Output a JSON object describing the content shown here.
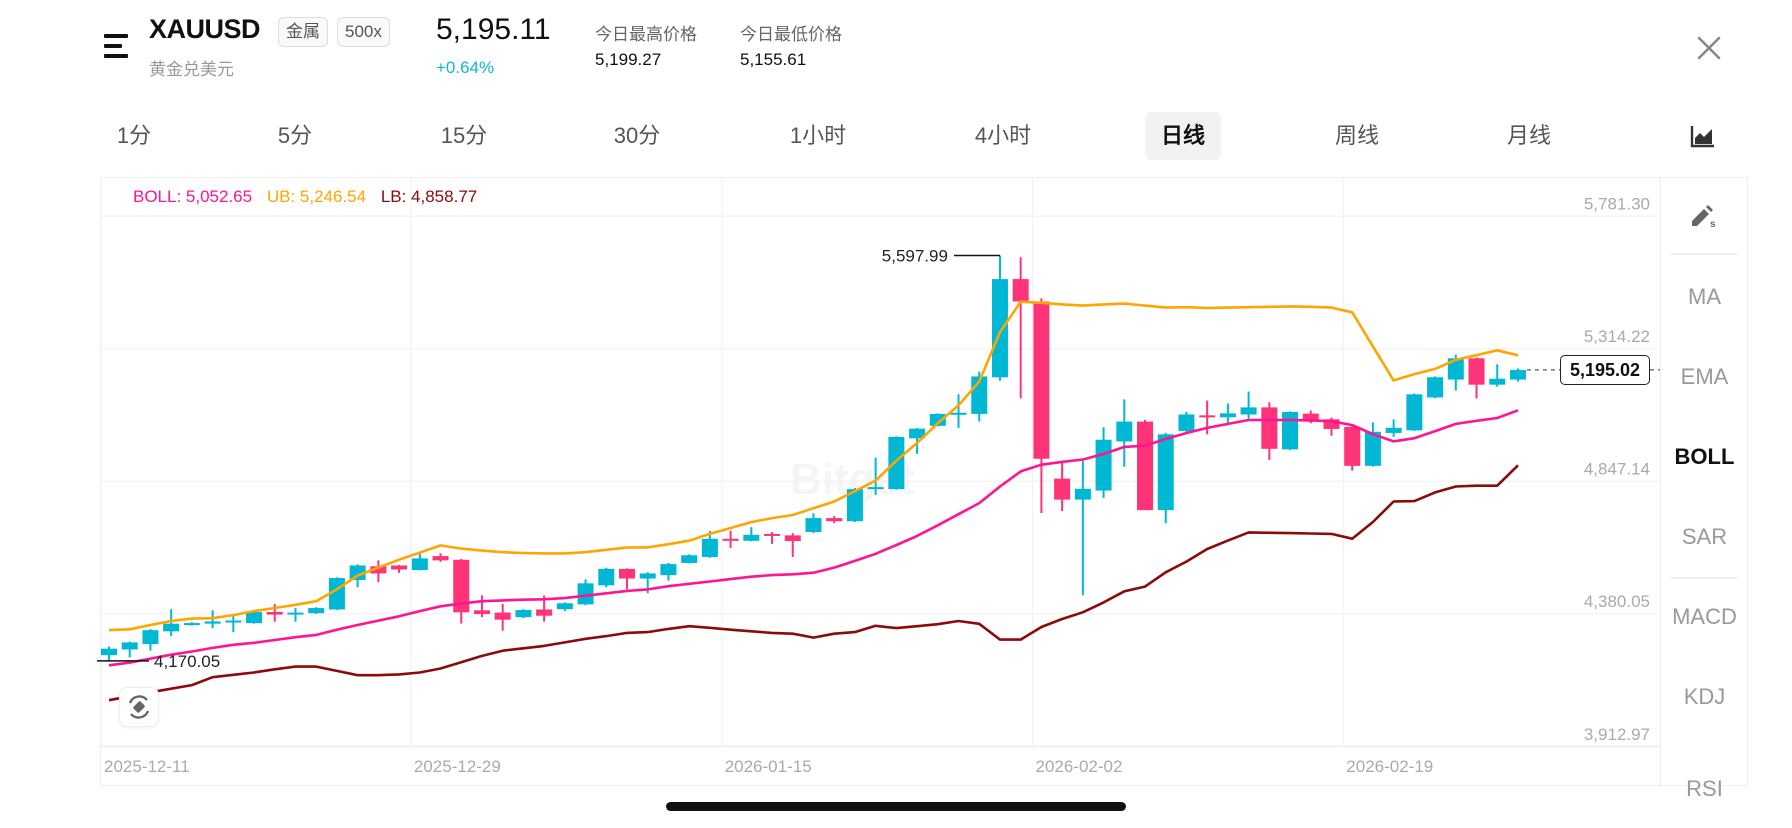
{
  "header": {
    "menu_icon": "menu-icon",
    "symbol": "XAUUSD",
    "tags": [
      "金属",
      "500x"
    ],
    "name": "黄金兑美元",
    "price": "5,195.11",
    "change": "+0.64%",
    "high_label": "今日最高价格",
    "high_value": "5,199.27",
    "low_label": "今日最低价格",
    "low_value": "5,155.61",
    "close_icon": "close-icon"
  },
  "timeframes": [
    {
      "label": "1分",
      "active": false
    },
    {
      "label": "5分",
      "active": false
    },
    {
      "label": "15分",
      "active": false
    },
    {
      "label": "30分",
      "active": false
    },
    {
      "label": "1小时",
      "active": false
    },
    {
      "label": "4小时",
      "active": false
    },
    {
      "label": "日线",
      "active": true
    },
    {
      "label": "周线",
      "active": false
    },
    {
      "label": "月线",
      "active": false
    }
  ],
  "chart_type_icon": "area-chart-icon",
  "sidebar": {
    "draw_tool_icon": "pencil-icon",
    "indicators": [
      {
        "label": "MA",
        "active": false
      },
      {
        "label": "EMA",
        "active": false
      },
      {
        "label": "BOLL",
        "active": true
      },
      {
        "label": "SAR",
        "active": false
      },
      {
        "label": "MACD",
        "active": false
      },
      {
        "label": "KDJ",
        "active": false
      },
      {
        "label": "RSI",
        "active": false
      }
    ]
  },
  "watermark": "Bitget",
  "rotate_icon": "rotate-screen-icon",
  "chart_data": {
    "type": "candlestick",
    "legend": {
      "boll": "BOLL: 5,052.65",
      "ub": "UB: 5,246.54",
      "lb": "LB: 4,858.77"
    },
    "y_range": [
      3912.97,
      5781.3
    ],
    "y_ticks": [
      "5,781.30",
      "5,314.22",
      "4,847.14",
      "4,380.05",
      "3,912.97"
    ],
    "y_tick_values": [
      5781.3,
      5314.22,
      4847.14,
      4380.05,
      3912.97
    ],
    "x_ticks": [
      {
        "label": "2025-12-11",
        "candle": 0
      },
      {
        "label": "2025-12-29",
        "candle": 15
      },
      {
        "label": "2026-01-15",
        "candle": 30
      },
      {
        "label": "2026-02-02",
        "candle": 45
      },
      {
        "label": "2026-02-19",
        "candle": 60
      }
    ],
    "grid": true,
    "candle_fields": [
      "open",
      "high",
      "low",
      "close"
    ],
    "candles": [
      [
        4190,
        4220,
        4170.05,
        4213
      ],
      [
        4210,
        4238,
        4182,
        4235
      ],
      [
        4229,
        4282,
        4206,
        4278
      ],
      [
        4274,
        4352,
        4257,
        4301
      ],
      [
        4296,
        4306,
        4294,
        4303
      ],
      [
        4301,
        4348,
        4285,
        4309
      ],
      [
        4306,
        4331,
        4271,
        4312
      ],
      [
        4303,
        4347,
        4301,
        4342
      ],
      [
        4342,
        4370,
        4308,
        4333
      ],
      [
        4334,
        4356,
        4308,
        4340
      ],
      [
        4338,
        4359,
        4335,
        4356
      ],
      [
        4351,
        4464,
        4349,
        4462
      ],
      [
        4455,
        4510,
        4429,
        4506
      ],
      [
        4503,
        4524,
        4447,
        4478
      ],
      [
        4506,
        4508,
        4480,
        4492
      ],
      [
        4490,
        4547,
        4489,
        4531
      ],
      [
        4539,
        4549,
        4519,
        4524
      ],
      [
        4526,
        4529,
        4301,
        4341
      ],
      [
        4348,
        4401,
        4324,
        4335
      ],
      [
        4340,
        4370,
        4276,
        4315
      ],
      [
        4324,
        4352,
        4321,
        4349
      ],
      [
        4351,
        4400,
        4308,
        4329
      ],
      [
        4352,
        4376,
        4345,
        4373
      ],
      [
        4369,
        4457,
        4366,
        4443
      ],
      [
        4436,
        4498,
        4429,
        4494
      ],
      [
        4494,
        4496,
        4422,
        4460
      ],
      [
        4460,
        4482,
        4408,
        4478
      ],
      [
        4472,
        4515,
        4453,
        4511
      ],
      [
        4515,
        4545,
        4513,
        4542
      ],
      [
        4536,
        4628,
        4533,
        4600
      ],
      [
        4600,
        4628,
        4568,
        4595
      ],
      [
        4593,
        4641,
        4591,
        4614
      ],
      [
        4617,
        4624,
        4582,
        4610
      ],
      [
        4612,
        4620,
        4536,
        4592
      ],
      [
        4624,
        4690,
        4620,
        4673
      ],
      [
        4673,
        4680,
        4655,
        4662
      ],
      [
        4662,
        4779,
        4659,
        4775
      ],
      [
        4776,
        4886,
        4754,
        4782
      ],
      [
        4775,
        4961,
        4773,
        4959
      ],
      [
        4954,
        4991,
        4899,
        4988
      ],
      [
        4998,
        5042,
        4996,
        5040
      ],
      [
        5038,
        5109,
        4991,
        5044
      ],
      [
        5040,
        5189,
        5013,
        5172
      ],
      [
        5169,
        5597.99,
        5157,
        5515
      ],
      [
        5515,
        5592,
        5095,
        5436
      ],
      [
        5436,
        5447,
        4691,
        4882
      ],
      [
        4812,
        4868,
        4698,
        4738
      ],
      [
        4738,
        4878,
        4401,
        4776
      ],
      [
        4770,
        4993,
        4744,
        4949
      ],
      [
        4943,
        5091,
        4854,
        5013
      ],
      [
        5013,
        5019,
        4701,
        4701
      ],
      [
        4701,
        4973,
        4655,
        4968
      ],
      [
        4980,
        5047,
        4973,
        5038
      ],
      [
        5035,
        5087,
        4968,
        5030
      ],
      [
        5028,
        5077,
        5007,
        5042
      ],
      [
        5038,
        5119,
        5021,
        5063
      ],
      [
        5063,
        5081,
        4878,
        4917
      ],
      [
        4915,
        5049,
        4913,
        5047
      ],
      [
        5041,
        5052,
        5007,
        5013
      ],
      [
        5021,
        5027,
        4963,
        4987
      ],
      [
        4994,
        4996,
        4840,
        4857
      ],
      [
        4857,
        5010,
        4854,
        4977
      ],
      [
        4973,
        5021,
        4959,
        4991
      ],
      [
        4982,
        5112,
        4980,
        5109
      ],
      [
        5098,
        5172,
        5095,
        5169
      ],
      [
        5161,
        5249,
        5122,
        5236
      ],
      [
        5236,
        5239,
        5094,
        5143
      ],
      [
        5143,
        5215,
        5136,
        5164
      ],
      [
        5161,
        5200,
        5154,
        5195.02
      ]
    ],
    "boll": {
      "mid": [
        4154.2,
        4163.9,
        4177.9,
        4191.8,
        4202.9,
        4215.5,
        4226.7,
        4233.6,
        4243.4,
        4253.2,
        4261.5,
        4279.7,
        4296.4,
        4311.7,
        4327.1,
        4345.2,
        4362.0,
        4371.7,
        4380.1,
        4382.8,
        4385.6,
        4387.0,
        4391.2,
        4399.5,
        4407.9,
        4416.3,
        4421.8,
        4433.0,
        4441.4,
        4449.7,
        4458.1,
        4466.5,
        4472.0,
        4474.8,
        4480.4,
        4498.5,
        4522.2,
        4547.3,
        4578.0,
        4610.1,
        4647.7,
        4686.8,
        4725.8,
        4784.4,
        4837.3,
        4861.1,
        4870.8,
        4879.2,
        4898.7,
        4923.7,
        4928.0,
        4951.7,
        4972.6,
        4990.7,
        5004.7,
        5018.6,
        5018.6,
        5018.6,
        5017.2,
        5014.4,
        5000.5,
        4968.4,
        4943.3,
        4954.5,
        4979.6,
        5004.7,
        5015.8,
        5025.6,
        5052.65
      ],
      "upper": [
        4278.2,
        4281.0,
        4296.4,
        4310.3,
        4318.7,
        4320.1,
        4331.2,
        4345.2,
        4356.3,
        4367.5,
        4380.1,
        4421.9,
        4470.7,
        4498.5,
        4526.4,
        4551.5,
        4576.7,
        4565.4,
        4558.5,
        4552.9,
        4550.1,
        4548.7,
        4548.7,
        4552.9,
        4561.3,
        4569.7,
        4569.7,
        4580.8,
        4593.3,
        4617.1,
        4638.0,
        4658.9,
        4672.8,
        4684.0,
        4707.7,
        4731.4,
        4767.6,
        4805.1,
        4875.0,
        4937.7,
        5007.4,
        5070.2,
        5153.8,
        5328.1,
        5435.5,
        5431.3,
        5425.7,
        5421.5,
        5425.7,
        5428.5,
        5421.5,
        5414.6,
        5416.0,
        5413.2,
        5414.6,
        5416.0,
        5417.4,
        5418.8,
        5417.4,
        5414.6,
        5397.9,
        5278.0,
        5158.0,
        5180.4,
        5198.5,
        5230.6,
        5247.3,
        5264.0,
        5246.54
      ],
      "lower": [
        4031.4,
        4045.4,
        4059.3,
        4071.9,
        4084.4,
        4112.3,
        4120.7,
        4129.0,
        4140.2,
        4149.9,
        4149.9,
        4134.6,
        4119.3,
        4119.3,
        4122.1,
        4129.0,
        4143.0,
        4165.3,
        4187.5,
        4205.7,
        4214.1,
        4222.5,
        4235.0,
        4247.6,
        4257.3,
        4268.5,
        4271.3,
        4282.4,
        4292.2,
        4286.6,
        4279.6,
        4274.1,
        4268.5,
        4265.7,
        4251.8,
        4265.7,
        4271.3,
        4293.6,
        4285.2,
        4292.2,
        4299.2,
        4310.3,
        4300.6,
        4244.8,
        4244.8,
        4289.4,
        4317.3,
        4341.0,
        4375.9,
        4414.9,
        4431.7,
        4481.9,
        4519.5,
        4564.1,
        4593.5,
        4622.7,
        4621.3,
        4619.9,
        4618.5,
        4617.1,
        4600.4,
        4659.0,
        4731.5,
        4732.9,
        4763.6,
        4784.4,
        4787.2,
        4787.2,
        4858.77
      ]
    },
    "annotations": {
      "high_label": "5,597.99",
      "high_value": 5597.99,
      "high_candle": 43,
      "low_label": "4,170.05",
      "low_value": 4170.05,
      "low_candle": 0
    },
    "last_price": "5,195.02",
    "last_price_value": 5195.02,
    "colors": {
      "up": "#00b8d4",
      "down": "#ff3377",
      "mid": "#ff1493",
      "upper": "#ffa500",
      "lower": "#8b0a0a"
    }
  }
}
